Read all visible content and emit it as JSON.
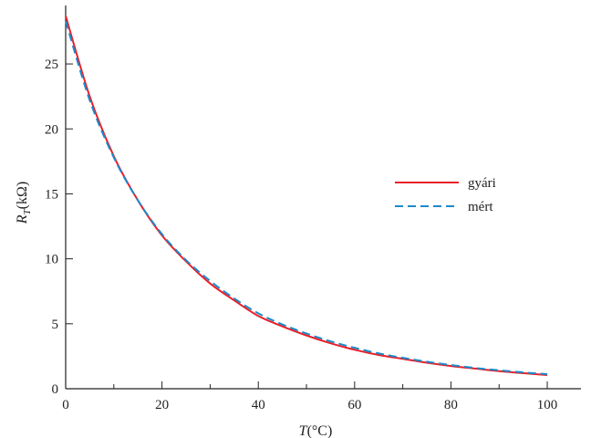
{
  "chart_data": {
    "type": "line",
    "xlabel": {
      "var": "T",
      "unit": "(°C)"
    },
    "ylabel": {
      "var": "R",
      "sub": "T",
      "unit": "(kΩ)"
    },
    "xlim": [
      0,
      107
    ],
    "ylim": [
      0,
      29.5
    ],
    "x_ticks": [
      0,
      20,
      40,
      60,
      80,
      100
    ],
    "x_tick_labels": [
      "0",
      "20",
      "40",
      "60",
      "80",
      "100"
    ],
    "x_minor_ticks": [
      10,
      30,
      50,
      70,
      90
    ],
    "y_ticks": [
      0,
      5,
      10,
      15,
      20,
      25
    ],
    "y_tick_labels": [
      "0",
      "5",
      "10",
      "15",
      "20",
      "25"
    ],
    "grid": false,
    "legend_position": "right-middle",
    "series": [
      {
        "name": "gyári",
        "color": "#e8202a",
        "dash": "solid",
        "x": [
          0,
          5,
          10,
          15,
          20,
          25,
          30,
          35,
          40,
          45,
          50,
          55,
          60,
          65,
          70,
          75,
          80,
          85,
          90,
          95,
          100
        ],
        "y": [
          28.7,
          22.5,
          17.9,
          14.5,
          11.8,
          9.8,
          8.1,
          6.8,
          5.6,
          4.8,
          4.1,
          3.5,
          3.0,
          2.6,
          2.3,
          2.0,
          1.75,
          1.55,
          1.35,
          1.2,
          1.05
        ]
      },
      {
        "name": "mért",
        "color": "#1c8ac9",
        "dash": "dashed",
        "x": [
          0,
          5,
          10,
          15,
          20,
          25,
          30,
          35,
          40,
          45,
          50,
          55,
          60,
          65,
          70,
          75,
          80,
          85,
          90,
          95,
          100
        ],
        "y": [
          28.3,
          22.2,
          17.8,
          14.5,
          11.9,
          9.9,
          8.3,
          6.95,
          5.8,
          4.95,
          4.25,
          3.65,
          3.15,
          2.72,
          2.38,
          2.08,
          1.82,
          1.6,
          1.42,
          1.26,
          1.12
        ]
      }
    ]
  }
}
